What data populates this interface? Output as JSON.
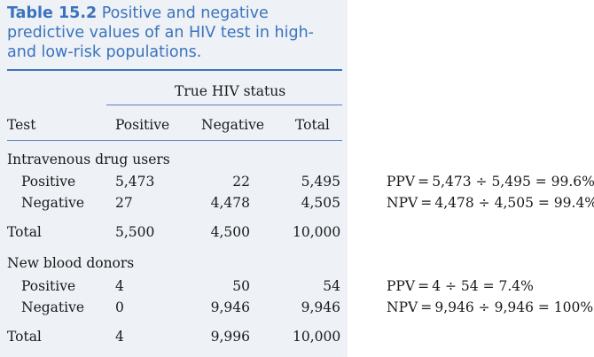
{
  "caption": {
    "label": "Table 15.2",
    "text": "Positive and negative predictive values of an HIV test in high- and low-risk populations."
  },
  "header": {
    "group_label": "True HIV status",
    "col_test": "Test",
    "col_positive": "Positive",
    "col_negative": "Negative",
    "col_total": "Total"
  },
  "groups": [
    {
      "name": "Intravenous drug users",
      "rows": [
        {
          "label": "Positive",
          "pos": "5,473",
          "neg": "22",
          "total": "5,495"
        },
        {
          "label": "Negative",
          "pos": "27",
          "neg": "4,478",
          "total": "4,505"
        }
      ],
      "total": {
        "label": "Total",
        "pos": "5,500",
        "neg": "4,500",
        "total": "10,000"
      },
      "ppv": "PPV = 5,473 ÷ 5,495 = 99.6%",
      "npv": "NPV = 4,478 ÷ 4,505 = 99.4%"
    },
    {
      "name": "New blood donors",
      "rows": [
        {
          "label": "Positive",
          "pos": "4",
          "neg": "50",
          "total": "54"
        },
        {
          "label": "Negative",
          "pos": "0",
          "neg": "9,946",
          "total": "9,946"
        }
      ],
      "total": {
        "label": "Total",
        "pos": "4",
        "neg": "9,996",
        "total": "10,000"
      },
      "ppv": "PPV = 4 ÷ 54 = 7.4%",
      "npv": "NPV = 9,946 ÷ 9,946 = 100%"
    }
  ],
  "colors": {
    "accent": "#3a73bd",
    "panel": "#eef1f6"
  }
}
